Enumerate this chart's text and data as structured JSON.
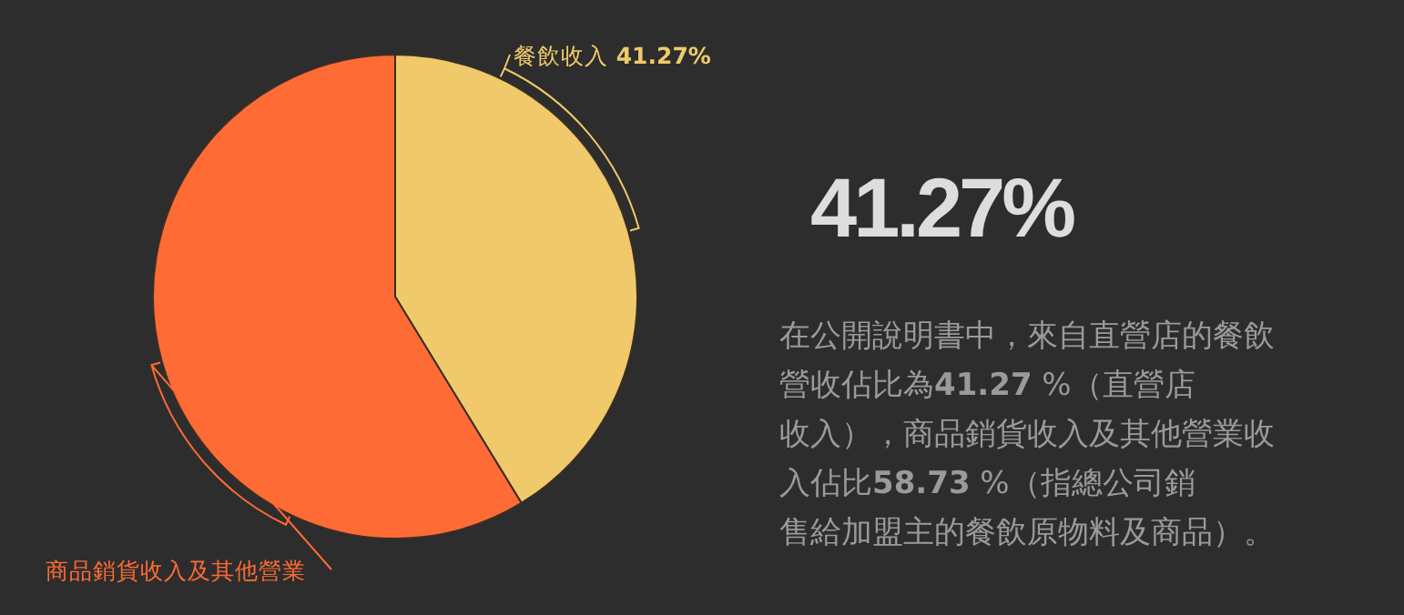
{
  "chart_data": {
    "type": "pie",
    "categories": [
      "餐飲收入",
      "商品銷貨收入及其他營業"
    ],
    "values": [
      41.27,
      58.73
    ],
    "colors": [
      "#efc96a",
      "#ff6b35"
    ],
    "value_labels": [
      "41.27%",
      null
    ],
    "annotations": [
      "41.27%",
      "在公開說明書中，來自直營店的餐飲營收佔比為41.27 %（直營店收入），商品銷貨收入及其他營業收入佔比58.73 %（指總公司銷售給加盟主的餐飲原物料及商品）。"
    ]
  }
}
